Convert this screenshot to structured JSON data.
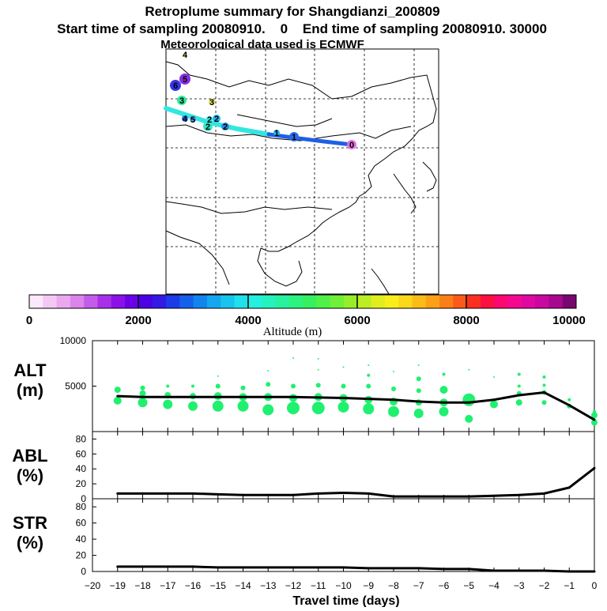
{
  "header": {
    "title": "Retroplume summary for Shangdianzi_200809",
    "line2": "Start time of sampling 20080910.    0    End time of sampling 20080910. 30000",
    "line3": "Meteorological data used is ECMWF"
  },
  "colors": {
    "track_old": "#33e6e0",
    "track_new": "#1f5fe6",
    "ribbon_green": "#20f070"
  },
  "map": {
    "markers": [
      {
        "label": "4",
        "color": "#d8d820"
      },
      {
        "label": "6",
        "color": "#3535e6"
      },
      {
        "label": "5",
        "color": "#8b2be0"
      },
      {
        "label": "3",
        "color": "#33e6a0"
      },
      {
        "label": "3",
        "color": "#e0e04a"
      },
      {
        "label": "4",
        "color": "#2b6ae6"
      },
      {
        "label": "5",
        "color": "#4aa0e6"
      },
      {
        "label": "2",
        "color": "#33e6c8"
      },
      {
        "label": "2",
        "color": "#2bb4e6"
      },
      {
        "label": "2",
        "color": "#2b8ce6"
      },
      {
        "label": "2",
        "color": "#33e6e0"
      },
      {
        "label": "1",
        "color": "#2bb4e6"
      },
      {
        "label": "1",
        "color": "#2b6ae6"
      },
      {
        "label": "0",
        "color": "#e070e0"
      }
    ]
  },
  "colorbar": {
    "xlabel": "Altitude (m)",
    "range": [
      0,
      10000
    ],
    "ticks": [
      "0",
      "2000",
      "4000",
      "6000",
      "8000",
      "10000"
    ],
    "colors": [
      "#fbe8fb",
      "#f4c8f4",
      "#eaa8ee",
      "#dc84ea",
      "#c45cea",
      "#a830e8",
      "#8c10e8",
      "#6a00e8",
      "#4c00e4",
      "#3418e4",
      "#1c3ce8",
      "#1460ec",
      "#1284ee",
      "#14a6ee",
      "#18c4ee",
      "#20e0ee",
      "#24f0e0",
      "#26f2c0",
      "#28f2a0",
      "#2cf280",
      "#36f060",
      "#50f048",
      "#70f038",
      "#96ee2a",
      "#bcee24",
      "#e0ee20",
      "#f8ee1c",
      "#fcd81a",
      "#fcbc18",
      "#fca018",
      "#fc7e18",
      "#fc5a1a",
      "#fc3020",
      "#fc1040",
      "#fc0870",
      "#f40890",
      "#e008a0",
      "#c808a0",
      "#a80890",
      "#780870"
    ]
  },
  "chart_data": [
    {
      "type": "line",
      "panel": "ALT",
      "ylabel_lines": [
        "ALT",
        "(m)"
      ],
      "ylim": [
        0,
        10000
      ],
      "yticks": [
        5000,
        10000
      ],
      "x": [
        -19,
        -18,
        -17,
        -16,
        -15,
        -14,
        -13,
        -12,
        -11,
        -10,
        -9,
        -8,
        -7,
        -6,
        -5,
        -4,
        -3,
        -2,
        -1,
        0
      ],
      "values": [
        3900,
        3800,
        3800,
        3800,
        3800,
        3800,
        3800,
        3800,
        3750,
        3700,
        3600,
        3500,
        3300,
        3200,
        3200,
        3500,
        4000,
        4300,
        2900,
        1300
      ],
      "ribbon": [
        {
          "x": -19,
          "dots": [
            [
              3400,
              5
            ],
            [
              4600,
              4
            ]
          ]
        },
        {
          "x": -18,
          "dots": [
            [
              3200,
              6
            ],
            [
              4200,
              4
            ],
            [
              4800,
              3
            ]
          ]
        },
        {
          "x": -17,
          "dots": [
            [
              3000,
              6
            ],
            [
              4000,
              4
            ],
            [
              5000,
              2
            ]
          ]
        },
        {
          "x": -16,
          "dots": [
            [
              2800,
              6
            ],
            [
              3900,
              4
            ],
            [
              5000,
              2
            ]
          ]
        },
        {
          "x": -15,
          "dots": [
            [
              2800,
              7
            ],
            [
              3900,
              5
            ],
            [
              5000,
              3
            ],
            [
              6100,
              1
            ]
          ]
        },
        {
          "x": -14,
          "dots": [
            [
              2800,
              7
            ],
            [
              3800,
              5
            ],
            [
              4800,
              3
            ]
          ]
        },
        {
          "x": -13,
          "dots": [
            [
              2400,
              7
            ],
            [
              3800,
              5
            ],
            [
              5200,
              3
            ],
            [
              6700,
              1
            ]
          ]
        },
        {
          "x": -12,
          "dots": [
            [
              2600,
              8
            ],
            [
              3700,
              5
            ],
            [
              5000,
              3
            ],
            [
              8100,
              1
            ]
          ]
        },
        {
          "x": -11,
          "dots": [
            [
              2600,
              8
            ],
            [
              3800,
              5
            ],
            [
              5100,
              3
            ],
            [
              6800,
              1
            ],
            [
              8000,
              1
            ]
          ]
        },
        {
          "x": -10,
          "dots": [
            [
              2700,
              7
            ],
            [
              3700,
              5
            ],
            [
              5000,
              3
            ],
            [
              7100,
              1
            ]
          ]
        },
        {
          "x": -9,
          "dots": [
            [
              2500,
              7
            ],
            [
              3500,
              5
            ],
            [
              5000,
              3
            ],
            [
              6200,
              2
            ],
            [
              7300,
              1
            ]
          ]
        },
        {
          "x": -8,
          "dots": [
            [
              2200,
              7
            ],
            [
              3300,
              5
            ],
            [
              4700,
              3
            ],
            [
              6600,
              1
            ]
          ]
        },
        {
          "x": -7,
          "dots": [
            [
              2000,
              6
            ],
            [
              3200,
              4
            ],
            [
              4500,
              3
            ],
            [
              5800,
              3
            ],
            [
              7300,
              1
            ]
          ]
        },
        {
          "x": -6,
          "dots": [
            [
              2200,
              6
            ],
            [
              3200,
              5
            ],
            [
              4600,
              5
            ],
            [
              6300,
              2
            ]
          ]
        },
        {
          "x": -5,
          "dots": [
            [
              1400,
              5
            ],
            [
              3500,
              8
            ],
            [
              6800,
              1
            ]
          ]
        },
        {
          "x": -4,
          "dots": [
            [
              3000,
              5
            ],
            [
              6000,
              1
            ]
          ]
        },
        {
          "x": -3,
          "dots": [
            [
              3200,
              4
            ],
            [
              4200,
              3
            ],
            [
              5000,
              2
            ],
            [
              6300,
              2
            ]
          ]
        },
        {
          "x": -2,
          "dots": [
            [
              3200,
              3
            ],
            [
              4300,
              3
            ],
            [
              5100,
              2
            ],
            [
              6000,
              2
            ]
          ]
        },
        {
          "x": -1,
          "dots": [
            [
              2800,
              3
            ],
            [
              3500,
              2
            ]
          ]
        },
        {
          "x": 0,
          "dots": [
            [
              1000,
              4
            ],
            [
              1800,
              4
            ],
            [
              2200,
              2
            ]
          ]
        }
      ]
    },
    {
      "type": "line",
      "panel": "ABL",
      "ylabel_lines": [
        "ABL",
        "(%)"
      ],
      "ylim": [
        0,
        90
      ],
      "yticks": [
        0,
        20,
        40,
        60,
        80
      ],
      "x": [
        -19,
        -18,
        -17,
        -16,
        -15,
        -14,
        -13,
        -12,
        -11,
        -10,
        -9,
        -8,
        -7,
        -6,
        -5,
        -4,
        -3,
        -2,
        -1,
        0
      ],
      "values": [
        7,
        7,
        7,
        7,
        6,
        5,
        5,
        5,
        7,
        8,
        7,
        3,
        3,
        3,
        3,
        4,
        5,
        7,
        15,
        41
      ]
    },
    {
      "type": "line",
      "panel": "STR",
      "ylabel_lines": [
        "STR",
        "(%)"
      ],
      "ylim": [
        0,
        90
      ],
      "yticks": [
        0,
        20,
        40,
        60,
        80
      ],
      "x": [
        -19,
        -18,
        -17,
        -16,
        -15,
        -14,
        -13,
        -12,
        -11,
        -10,
        -9,
        -8,
        -7,
        -6,
        -5,
        -4,
        -3,
        -2,
        -1,
        0
      ],
      "values": [
        6,
        6,
        6,
        6,
        5,
        5,
        5,
        5,
        5,
        5,
        4,
        4,
        4,
        3,
        3,
        1,
        1,
        1,
        0,
        0
      ]
    }
  ],
  "xaxis": {
    "label": "Travel time (days)",
    "range": [
      -20,
      0
    ],
    "ticks": [
      "−20",
      "−19",
      "−18",
      "−17",
      "−16",
      "−15",
      "−14",
      "−13",
      "−12",
      "−11",
      "−10",
      "−9",
      "−8",
      "−7",
      "−6",
      "−5",
      "−4",
      "−3",
      "−2",
      "−1",
      "0"
    ]
  }
}
